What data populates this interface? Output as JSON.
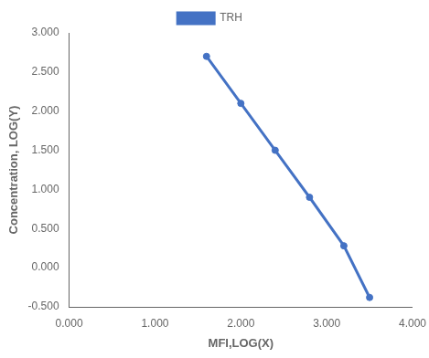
{
  "chart_data": {
    "type": "line",
    "xlabel": "MFI,LOG(X)",
    "ylabel": "Concentration, LOG(Y)",
    "x": [
      1.6,
      2.0,
      2.4,
      2.8,
      3.2,
      3.5
    ],
    "series": [
      {
        "name": "TRH",
        "color": "#4472C4",
        "values": [
          2.7,
          2.1,
          1.5,
          0.9,
          0.28,
          -0.38
        ],
        "marker": "circle",
        "line_style": "solid"
      }
    ],
    "xlim": [
      0.0,
      4.0
    ],
    "ylim": [
      -0.5,
      3.0
    ],
    "xticks": [
      {
        "value": 0,
        "label": "0.000"
      },
      {
        "value": 1,
        "label": "1.000"
      },
      {
        "value": 2,
        "label": "2.000"
      },
      {
        "value": 3,
        "label": "3.000"
      },
      {
        "value": 4,
        "label": "4.000"
      }
    ],
    "yticks": [
      {
        "value": -0.5,
        "label": "-0.500"
      },
      {
        "value": 0,
        "label": "0.000"
      },
      {
        "value": 0.5,
        "label": "0.500"
      },
      {
        "value": 1,
        "label": "1.000"
      },
      {
        "value": 1.5,
        "label": "1.500"
      },
      {
        "value": 2,
        "label": "2.000"
      },
      {
        "value": 2.5,
        "label": "2.500"
      },
      {
        "value": 3,
        "label": "3.000"
      }
    ],
    "grid": false,
    "legend": "top"
  }
}
